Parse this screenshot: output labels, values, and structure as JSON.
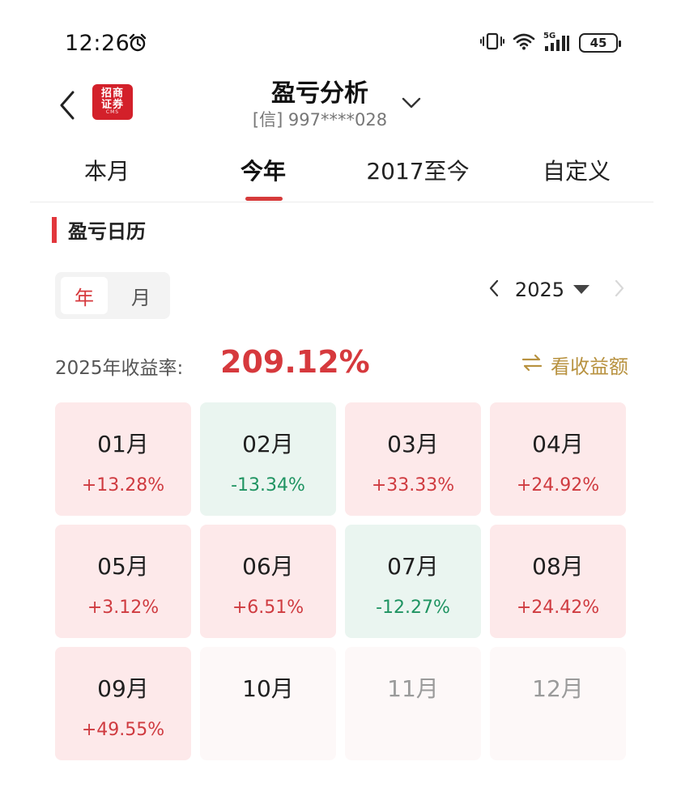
{
  "status_bar": {
    "time": "12:26",
    "network": "5G",
    "battery": "45",
    "icons": [
      "alarm-icon",
      "vibrate-icon",
      "wifi-icon",
      "signal-icon",
      "battery-icon"
    ]
  },
  "header": {
    "title": "盈亏分析",
    "account": "[信] 997****028",
    "logo_line1": "招商",
    "logo_line2": "证券",
    "logo_sub": "CMS"
  },
  "tabs": [
    {
      "label": "本月",
      "active": false
    },
    {
      "label": "今年",
      "active": true
    },
    {
      "label": "2017至今",
      "active": false
    },
    {
      "label": "自定义",
      "active": false
    }
  ],
  "calendar": {
    "section_title": "盈亏日历",
    "toggle": {
      "year_label": "年",
      "month_label": "月",
      "selected": "年"
    },
    "year": "2025",
    "yield_label": "2025年收益率:",
    "yield_value": "209.12%",
    "toggle_amount_label": "看收益额",
    "months": [
      {
        "label": "01月",
        "value": "+13.28%",
        "trend": "up"
      },
      {
        "label": "02月",
        "value": "-13.34%",
        "trend": "down"
      },
      {
        "label": "03月",
        "value": "+33.33%",
        "trend": "up"
      },
      {
        "label": "04月",
        "value": "+24.92%",
        "trend": "up"
      },
      {
        "label": "05月",
        "value": "+3.12%",
        "trend": "up"
      },
      {
        "label": "06月",
        "value": "+6.51%",
        "trend": "up"
      },
      {
        "label": "07月",
        "value": "-12.27%",
        "trend": "down"
      },
      {
        "label": "08月",
        "value": "+24.42%",
        "trend": "up"
      },
      {
        "label": "09月",
        "value": "+49.55%",
        "trend": "up"
      },
      {
        "label": "10月",
        "value": "",
        "trend": "none"
      },
      {
        "label": "11月",
        "value": "",
        "trend": "future"
      },
      {
        "label": "12月",
        "value": "",
        "trend": "future"
      }
    ]
  },
  "colors": {
    "accent_red": "#d6393d",
    "gain_bg": "#fde9ea",
    "loss_bg": "#eaf5f0",
    "loss_text": "#1f9462",
    "gold_link": "#b89240"
  }
}
